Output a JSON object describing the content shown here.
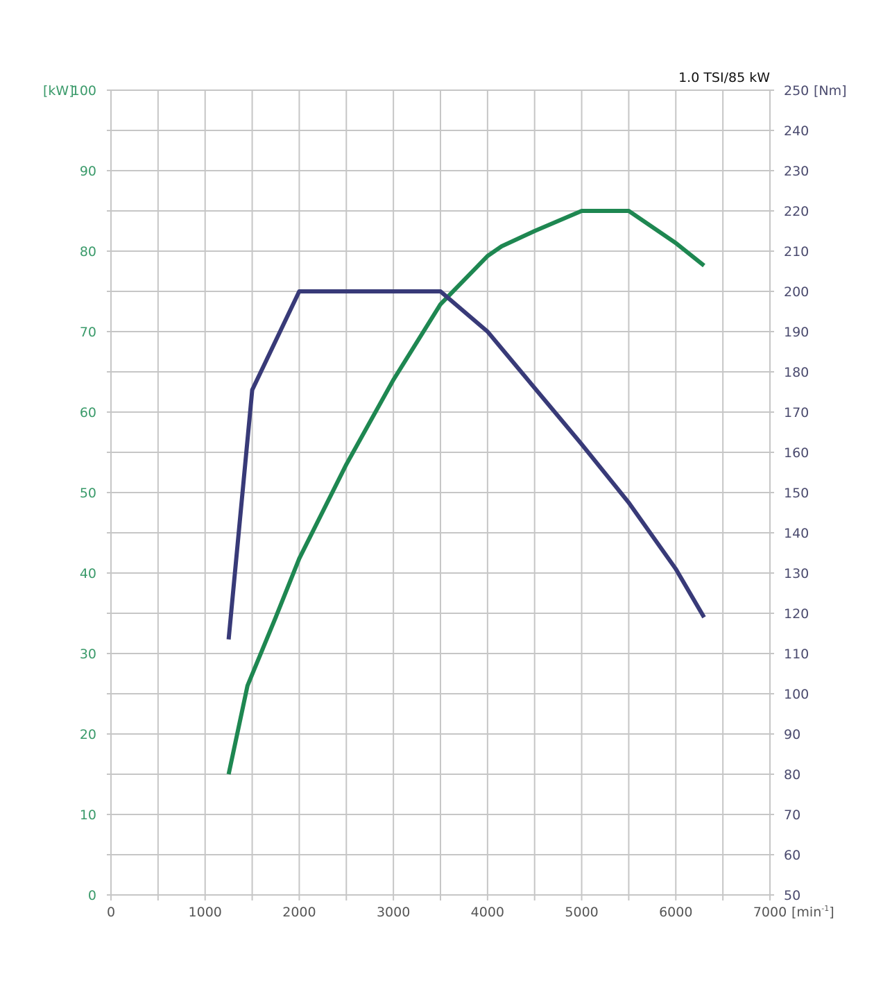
{
  "chart_data": {
    "type": "line",
    "title": "1.0 TSI/85 kW",
    "x_unit_base": "[min",
    "x_unit_sup": "-1",
    "x_unit_close": "]",
    "y_left_unit": "[kW]",
    "y_right_unit": "[Nm]",
    "xlim": [
      0,
      7000
    ],
    "x_ticks": [
      0,
      1000,
      2000,
      3000,
      4000,
      5000,
      6000,
      7000
    ],
    "x_grid_step": 500,
    "y_left_lim": [
      0,
      100
    ],
    "y_left_ticks": [
      0,
      10,
      20,
      30,
      40,
      50,
      60,
      70,
      80,
      90,
      100
    ],
    "y_right_lim": [
      50,
      250
    ],
    "y_right_ticks": [
      50,
      60,
      70,
      80,
      90,
      100,
      110,
      120,
      130,
      140,
      150,
      160,
      170,
      180,
      190,
      200,
      210,
      220,
      230,
      240,
      250
    ],
    "grid": true,
    "series": [
      {
        "axis": "left",
        "color": "#1e8751",
        "points": [
          [
            1250,
            15.0
          ],
          [
            1450,
            26.0
          ],
          [
            1750,
            34.5
          ],
          [
            2000,
            41.8
          ],
          [
            2500,
            53.5
          ],
          [
            3000,
            64.0
          ],
          [
            3500,
            73.4
          ],
          [
            4000,
            79.4
          ],
          [
            4150,
            80.6
          ],
          [
            4500,
            82.5
          ],
          [
            5000,
            85.0
          ],
          [
            5500,
            85.0
          ],
          [
            6000,
            81.0
          ],
          [
            6300,
            78.2
          ]
        ]
      },
      {
        "axis": "right",
        "color": "#383a78",
        "points": [
          [
            1250,
            113.5
          ],
          [
            1500,
            175.5
          ],
          [
            2000,
            200.0
          ],
          [
            3500,
            200.0
          ],
          [
            4000,
            190.0
          ],
          [
            4500,
            176.0
          ],
          [
            5000,
            162.0
          ],
          [
            5500,
            147.5
          ],
          [
            6000,
            131.0
          ],
          [
            6300,
            119.0
          ]
        ]
      }
    ]
  }
}
